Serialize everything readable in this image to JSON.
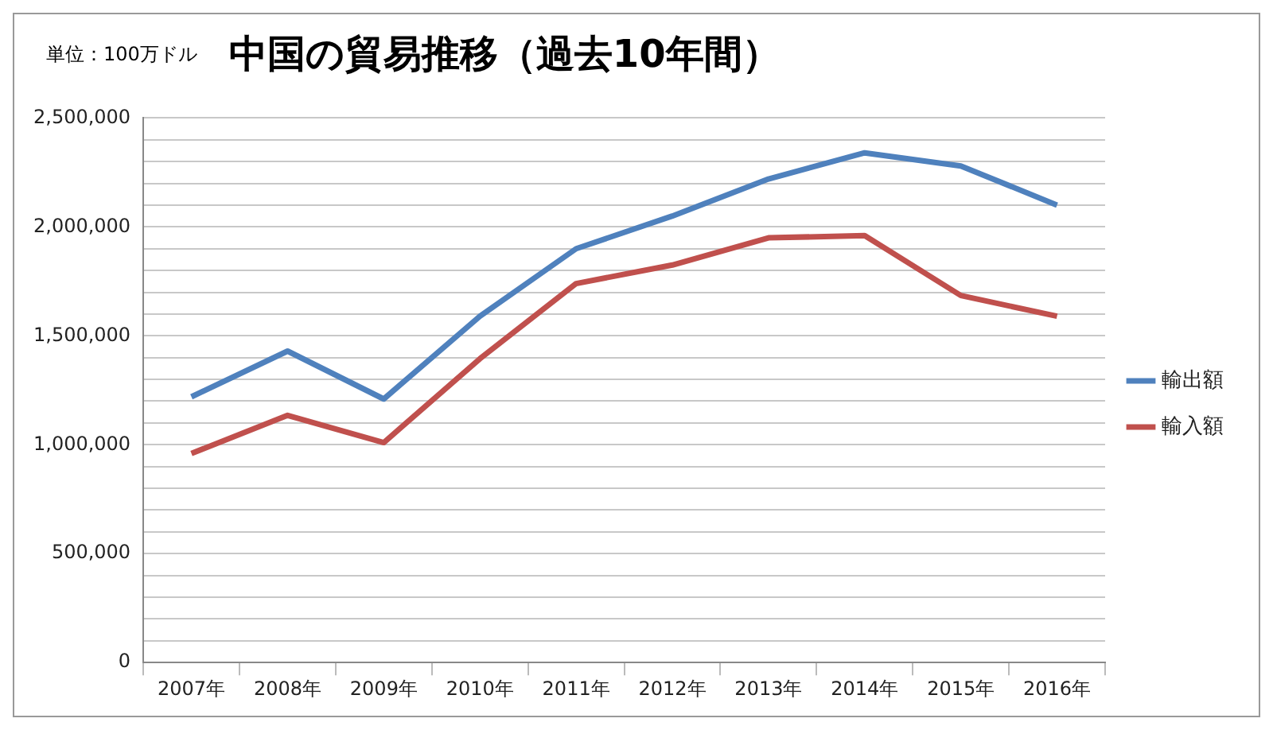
{
  "chart_data": {
    "type": "line",
    "title": "中国の貿易推移（過去10年間）",
    "annotations": [
      "単位：100万ドル"
    ],
    "categories": [
      "2007年",
      "2008年",
      "2009年",
      "2010年",
      "2011年",
      "2012年",
      "2013年",
      "2014年",
      "2015年",
      "2016年"
    ],
    "series": [
      {
        "name": "輸出額",
        "color": "#4f81bd",
        "values": [
          1220000,
          1430000,
          1210000,
          1590000,
          1900000,
          2050000,
          2220000,
          2340000,
          2280000,
          2100000
        ]
      },
      {
        "name": "輸入額",
        "color": "#c0504d",
        "values": [
          960000,
          1135000,
          1010000,
          1395000,
          1740000,
          1825000,
          1950000,
          1960000,
          1685000,
          1590000
        ]
      }
    ],
    "ylim": [
      0,
      2500000
    ],
    "yticks": [
      {
        "value": 0,
        "label": "0"
      },
      {
        "value": 100000,
        "label": null
      },
      {
        "value": 200000,
        "label": null
      },
      {
        "value": 300000,
        "label": null
      },
      {
        "value": 400000,
        "label": null
      },
      {
        "value": 500000,
        "label": "500,000"
      },
      {
        "value": 600000,
        "label": null
      },
      {
        "value": 700000,
        "label": null
      },
      {
        "value": 800000,
        "label": null
      },
      {
        "value": 900000,
        "label": null
      },
      {
        "value": 1000000,
        "label": "1,000,000"
      },
      {
        "value": 1100000,
        "label": null
      },
      {
        "value": 1200000,
        "label": null
      },
      {
        "value": 1300000,
        "label": null
      },
      {
        "value": 1400000,
        "label": null
      },
      {
        "value": 1500000,
        "label": "1,500,000"
      },
      {
        "value": 1600000,
        "label": null
      },
      {
        "value": 1700000,
        "label": null
      },
      {
        "value": 1800000,
        "label": null
      },
      {
        "value": 1900000,
        "label": null
      },
      {
        "value": 2000000,
        "label": "2,000,000"
      },
      {
        "value": 2100000,
        "label": null
      },
      {
        "value": 2200000,
        "label": null
      },
      {
        "value": 2300000,
        "label": null
      },
      {
        "value": 2400000,
        "label": null
      },
      {
        "value": 2500000,
        "label": "2,500,000"
      }
    ],
    "grid": "y",
    "legend": "right",
    "marker": "none",
    "line_style": "solid"
  }
}
